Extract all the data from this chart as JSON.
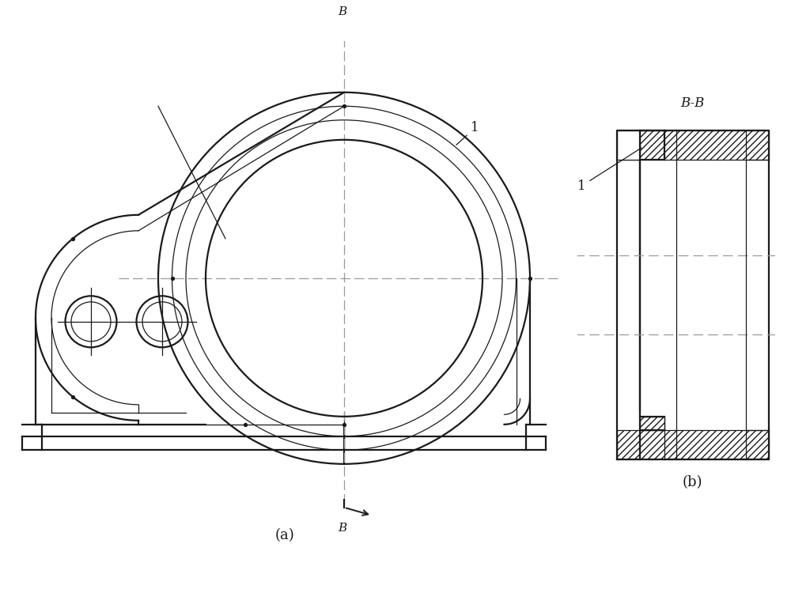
{
  "bg_color": "#ffffff",
  "line_color": "#1a1a1a",
  "dash_color": "#999999",
  "fig_width": 10.0,
  "fig_height": 7.69,
  "label_a": "(a)",
  "label_b": "(b)",
  "section_label": "B-B",
  "part_label": "1",
  "B_label": "B"
}
